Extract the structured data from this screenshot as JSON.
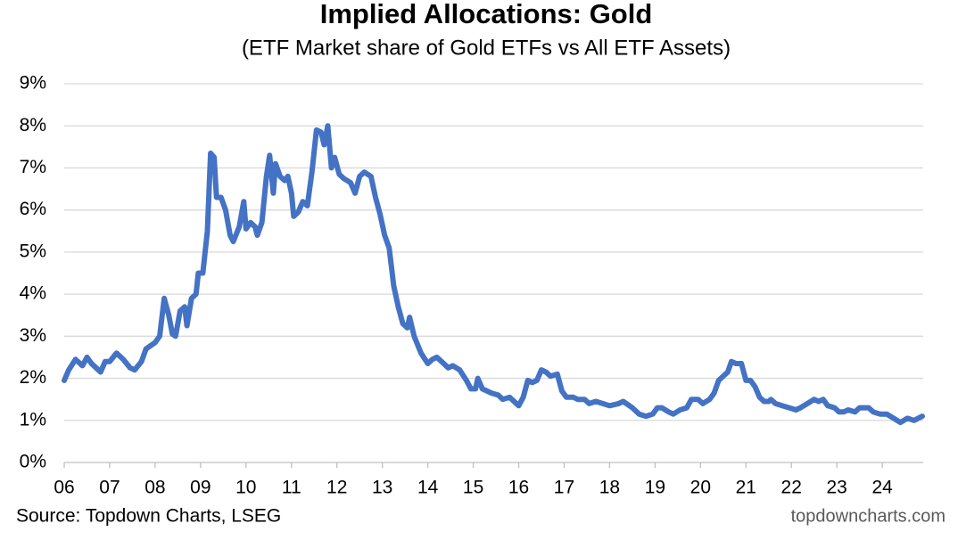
{
  "chart_data": {
    "type": "line",
    "title": "Implied Allocations: Gold",
    "subtitle": "(ETF Market share of Gold ETFs vs All ETF Assets)",
    "source": "Source: Topdown Charts, LSEG",
    "watermark": "topdowncharts.com",
    "xlim": [
      6,
      24.9
    ],
    "xticks": [
      {
        "value": 6,
        "label": "06"
      },
      {
        "value": 7,
        "label": "07"
      },
      {
        "value": 8,
        "label": "08"
      },
      {
        "value": 9,
        "label": "09"
      },
      10,
      11,
      12,
      13,
      14,
      15,
      16,
      17,
      18,
      19,
      20,
      21,
      22,
      23,
      24
    ],
    "ylim": [
      0,
      9
    ],
    "yticks": [
      {
        "value": 0,
        "label": "0%"
      },
      {
        "value": 1,
        "label": "1%"
      },
      {
        "value": 2,
        "label": "2%"
      },
      {
        "value": 3,
        "label": "3%"
      },
      {
        "value": 4,
        "label": "4%"
      },
      {
        "value": 5,
        "label": "5%"
      },
      {
        "value": 6,
        "label": "6%"
      },
      {
        "value": 7,
        "label": "7%"
      },
      {
        "value": 8,
        "label": "8%"
      },
      {
        "value": 9,
        "label": "9%"
      }
    ],
    "grid": true,
    "series": [
      {
        "color": "#4472c4",
        "x": [
          6.0,
          6.1,
          6.25,
          6.4,
          6.5,
          6.6,
          6.8,
          6.9,
          7.0,
          7.15,
          7.3,
          7.45,
          7.55,
          7.7,
          7.8,
          8.0,
          8.1,
          8.2,
          8.3,
          8.38,
          8.45,
          8.55,
          8.65,
          8.7,
          8.8,
          8.9,
          8.95,
          9.05,
          9.15,
          9.22,
          9.3,
          9.35,
          9.45,
          9.55,
          9.65,
          9.72,
          9.85,
          9.95,
          10.0,
          10.1,
          10.2,
          10.25,
          10.35,
          10.45,
          10.52,
          10.6,
          10.65,
          10.75,
          10.85,
          10.92,
          11.0,
          11.05,
          11.15,
          11.25,
          11.35,
          11.45,
          11.55,
          11.65,
          11.72,
          11.8,
          11.88,
          11.95,
          12.05,
          12.15,
          12.3,
          12.4,
          12.5,
          12.6,
          12.75,
          12.85,
          12.95,
          13.05,
          13.15,
          13.25,
          13.35,
          13.45,
          13.55,
          13.6,
          13.7,
          13.85,
          14.0,
          14.1,
          14.2,
          14.35,
          14.45,
          14.55,
          14.7,
          14.85,
          14.95,
          15.05,
          15.1,
          15.2,
          15.4,
          15.55,
          15.65,
          15.8,
          15.9,
          16.0,
          16.1,
          16.2,
          16.3,
          16.4,
          16.5,
          16.6,
          16.7,
          16.85,
          16.95,
          17.05,
          17.2,
          17.3,
          17.45,
          17.55,
          17.7,
          17.85,
          18.0,
          18.2,
          18.3,
          18.5,
          18.65,
          18.8,
          18.95,
          19.05,
          19.15,
          19.3,
          19.4,
          19.55,
          19.7,
          19.8,
          19.95,
          20.05,
          20.2,
          20.3,
          20.4,
          20.5,
          20.6,
          20.68,
          20.78,
          20.9,
          21.0,
          21.1,
          21.2,
          21.3,
          21.4,
          21.5,
          21.55,
          21.65,
          21.8,
          21.95,
          22.1,
          22.2,
          22.35,
          22.5,
          22.6,
          22.7,
          22.8,
          22.95,
          23.05,
          23.15,
          23.25,
          23.4,
          23.5,
          23.7,
          23.8,
          23.95,
          24.1,
          24.25,
          24.4,
          24.55,
          24.7,
          24.88
        ],
        "values": [
          1.95,
          2.2,
          2.45,
          2.3,
          2.5,
          2.35,
          2.15,
          2.4,
          2.4,
          2.6,
          2.45,
          2.25,
          2.2,
          2.4,
          2.7,
          2.85,
          3.0,
          3.9,
          3.5,
          3.05,
          3.0,
          3.6,
          3.7,
          3.25,
          3.9,
          4.0,
          4.5,
          4.5,
          5.5,
          7.35,
          7.25,
          6.3,
          6.3,
          6.0,
          5.4,
          5.25,
          5.6,
          6.2,
          5.55,
          5.7,
          5.6,
          5.4,
          5.7,
          6.8,
          7.3,
          6.4,
          7.1,
          6.8,
          6.7,
          6.8,
          6.4,
          5.85,
          5.95,
          6.2,
          6.1,
          6.9,
          7.9,
          7.85,
          7.55,
          8.0,
          7.0,
          7.25,
          6.85,
          6.75,
          6.65,
          6.4,
          6.8,
          6.9,
          6.8,
          6.3,
          5.9,
          5.4,
          5.1,
          4.2,
          3.7,
          3.3,
          3.2,
          3.45,
          3.0,
          2.6,
          2.35,
          2.45,
          2.5,
          2.35,
          2.25,
          2.3,
          2.2,
          1.95,
          1.75,
          1.75,
          2.0,
          1.75,
          1.65,
          1.6,
          1.5,
          1.55,
          1.45,
          1.35,
          1.55,
          1.95,
          1.9,
          1.95,
          2.2,
          2.15,
          2.05,
          2.1,
          1.7,
          1.55,
          1.55,
          1.5,
          1.5,
          1.4,
          1.45,
          1.4,
          1.35,
          1.4,
          1.45,
          1.3,
          1.15,
          1.1,
          1.15,
          1.3,
          1.3,
          1.2,
          1.15,
          1.25,
          1.3,
          1.5,
          1.5,
          1.4,
          1.5,
          1.65,
          1.95,
          2.05,
          2.15,
          2.4,
          2.35,
          2.35,
          1.95,
          1.95,
          1.8,
          1.55,
          1.45,
          1.45,
          1.5,
          1.4,
          1.35,
          1.3,
          1.25,
          1.3,
          1.4,
          1.5,
          1.45,
          1.5,
          1.35,
          1.3,
          1.2,
          1.2,
          1.25,
          1.2,
          1.3,
          1.3,
          1.2,
          1.15,
          1.15,
          1.05,
          0.95,
          1.05,
          1.0,
          1.1
        ]
      }
    ]
  }
}
